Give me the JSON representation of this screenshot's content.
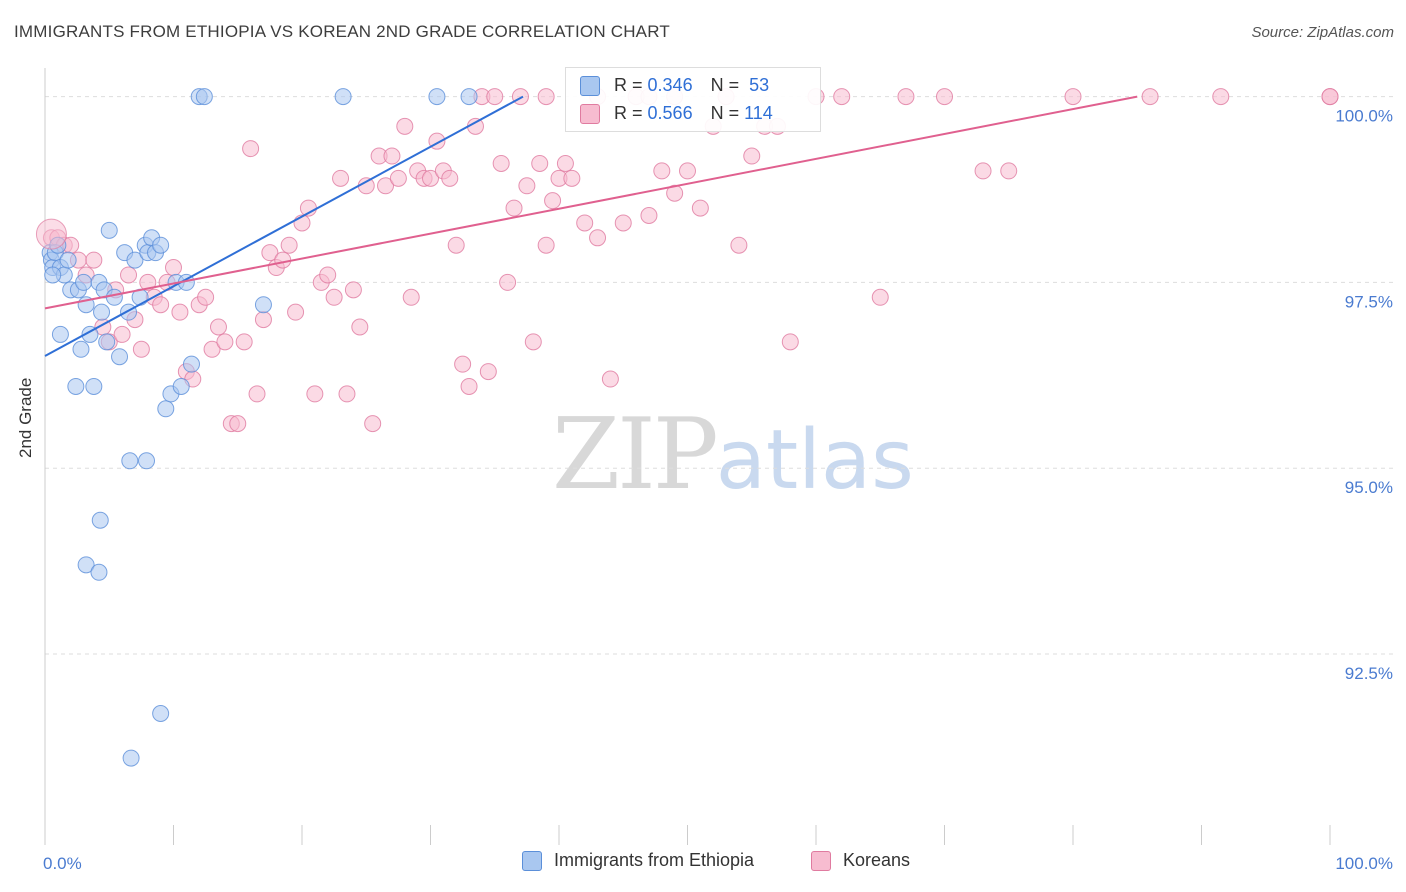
{
  "header": {
    "title": "IMMIGRANTS FROM ETHIOPIA VS KOREAN 2ND GRADE CORRELATION CHART",
    "source": "Source: ZipAtlas.com"
  },
  "watermark": {
    "zip": "ZIP",
    "atlas": "atlas"
  },
  "legend": {
    "rows": [
      {
        "r_label": "R =",
        "r_value": "0.346",
        "n_label": "N =",
        "n_value": "53"
      },
      {
        "r_label": "R =",
        "r_value": "0.566",
        "n_label": "N =",
        "n_value": "114"
      }
    ]
  },
  "bottom_legend": {
    "series1": "Immigrants from Ethiopia",
    "series2": "Koreans"
  },
  "chart_data": {
    "type": "scatter",
    "title": "IMMIGRANTS FROM ETHIOPIA VS KOREAN 2ND GRADE CORRELATION CHART",
    "xlabel": "",
    "ylabel": "2nd Grade",
    "xlim": [
      0,
      100
    ],
    "ylim": [
      90.2,
      100.25
    ],
    "x_tick_labels": [
      {
        "value": 0,
        "label": "0.0%"
      },
      {
        "value": 100,
        "label": "100.0%"
      }
    ],
    "y_ticks": [
      {
        "value": 100.0,
        "label": "100.0%"
      },
      {
        "value": 97.5,
        "label": "97.5%"
      },
      {
        "value": 95.0,
        "label": "95.0%"
      },
      {
        "value": 92.5,
        "label": "92.5%"
      }
    ],
    "colors": {
      "series1_fill": "#a9c7f0",
      "series1_stroke": "#5b8fd9",
      "series1_line": "#2f6fd6",
      "series2_fill": "#f7bcd0",
      "series2_stroke": "#e07ba0",
      "series2_line": "#e0608f",
      "grid": "#dddddd",
      "tick_label": "#4a7bd0"
    },
    "series": [
      {
        "name": "Immigrants from Ethiopia",
        "r": 0.346,
        "n": 53,
        "trend": {
          "x": [
            0,
            37.2
          ],
          "y": [
            96.51,
            100.0
          ]
        },
        "points": [
          [
            0.4,
            97.9
          ],
          [
            0.5,
            97.8
          ],
          [
            0.6,
            97.7
          ],
          [
            0.8,
            97.9
          ],
          [
            1.0,
            98.0
          ],
          [
            1.2,
            97.7
          ],
          [
            1.5,
            97.6
          ],
          [
            1.8,
            97.8
          ],
          [
            2.0,
            97.4
          ],
          [
            2.4,
            96.1
          ],
          [
            2.6,
            97.4
          ],
          [
            2.8,
            96.6
          ],
          [
            3.0,
            97.5
          ],
          [
            3.2,
            97.2
          ],
          [
            3.5,
            96.8
          ],
          [
            3.8,
            96.1
          ],
          [
            4.2,
            97.5
          ],
          [
            4.4,
            97.1
          ],
          [
            4.6,
            97.4
          ],
          [
            4.8,
            96.7
          ],
          [
            5.0,
            98.2
          ],
          [
            5.4,
            97.3
          ],
          [
            5.8,
            96.5
          ],
          [
            6.2,
            97.9
          ],
          [
            6.5,
            97.1
          ],
          [
            7.0,
            97.8
          ],
          [
            7.4,
            97.3
          ],
          [
            7.8,
            98.0
          ],
          [
            8.0,
            97.9
          ],
          [
            8.3,
            98.1
          ],
          [
            8.6,
            97.9
          ],
          [
            9.0,
            98.0
          ],
          [
            9.4,
            95.8
          ],
          [
            9.8,
            96.0
          ],
          [
            10.2,
            97.5
          ],
          [
            10.6,
            96.1
          ],
          [
            11.0,
            97.5
          ],
          [
            11.4,
            96.4
          ],
          [
            3.2,
            93.7
          ],
          [
            4.2,
            93.6
          ],
          [
            4.3,
            94.3
          ],
          [
            6.6,
            95.1
          ],
          [
            6.7,
            91.1
          ],
          [
            7.9,
            95.1
          ],
          [
            9.0,
            91.7
          ],
          [
            12.0,
            100.0
          ],
          [
            12.4,
            100.0
          ],
          [
            17.0,
            97.2
          ],
          [
            23.2,
            100.0
          ],
          [
            30.5,
            100.0
          ],
          [
            33.0,
            100.0
          ],
          [
            0.6,
            97.6
          ],
          [
            1.2,
            96.8
          ]
        ]
      },
      {
        "name": "Koreans",
        "r": 0.566,
        "n": 114,
        "trend": {
          "x": [
            0,
            85.0
          ],
          "y": [
            97.15,
            100.0
          ]
        },
        "points": [
          [
            0.5,
            98.1
          ],
          [
            1.0,
            98.1
          ],
          [
            1.5,
            98.0
          ],
          [
            2.0,
            98.0
          ],
          [
            2.6,
            97.8
          ],
          [
            3.2,
            97.6
          ],
          [
            3.8,
            97.8
          ],
          [
            4.5,
            96.9
          ],
          [
            5.0,
            96.7
          ],
          [
            5.5,
            97.4
          ],
          [
            6.0,
            96.8
          ],
          [
            6.5,
            97.6
          ],
          [
            7.0,
            97.0
          ],
          [
            7.5,
            96.6
          ],
          [
            8.0,
            97.5
          ],
          [
            8.5,
            97.3
          ],
          [
            9.0,
            97.2
          ],
          [
            9.5,
            97.5
          ],
          [
            10.0,
            97.7
          ],
          [
            10.5,
            97.1
          ],
          [
            11.0,
            96.3
          ],
          [
            11.5,
            96.2
          ],
          [
            12.0,
            97.2
          ],
          [
            12.5,
            97.3
          ],
          [
            13.0,
            96.6
          ],
          [
            13.5,
            96.9
          ],
          [
            14.0,
            96.7
          ],
          [
            14.5,
            95.6
          ],
          [
            15.0,
            95.6
          ],
          [
            15.5,
            96.7
          ],
          [
            16.0,
            99.3
          ],
          [
            16.5,
            96.0
          ],
          [
            17.0,
            97.0
          ],
          [
            17.5,
            97.9
          ],
          [
            18.0,
            97.7
          ],
          [
            18.5,
            97.8
          ],
          [
            19.0,
            98.0
          ],
          [
            19.5,
            97.1
          ],
          [
            20.0,
            98.3
          ],
          [
            20.5,
            98.5
          ],
          [
            21.0,
            96.0
          ],
          [
            21.5,
            97.5
          ],
          [
            22.0,
            97.6
          ],
          [
            22.5,
            97.3
          ],
          [
            23.0,
            98.9
          ],
          [
            23.5,
            96.0
          ],
          [
            24.0,
            97.4
          ],
          [
            24.5,
            96.9
          ],
          [
            25.0,
            98.8
          ],
          [
            25.5,
            95.6
          ],
          [
            26.0,
            99.2
          ],
          [
            26.5,
            98.8
          ],
          [
            27.0,
            99.2
          ],
          [
            27.5,
            98.9
          ],
          [
            28.0,
            99.6
          ],
          [
            28.5,
            97.3
          ],
          [
            29.0,
            99.0
          ],
          [
            29.5,
            98.9
          ],
          [
            30.0,
            98.9
          ],
          [
            30.5,
            99.4
          ],
          [
            31.0,
            99.0
          ],
          [
            31.5,
            98.9
          ],
          [
            32.0,
            98.0
          ],
          [
            32.5,
            96.4
          ],
          [
            33.0,
            96.1
          ],
          [
            33.5,
            99.6
          ],
          [
            34.0,
            100.0
          ],
          [
            34.5,
            96.3
          ],
          [
            35.0,
            100.0
          ],
          [
            35.5,
            99.1
          ],
          [
            36.0,
            97.5
          ],
          [
            36.5,
            98.5
          ],
          [
            37.0,
            100.0
          ],
          [
            37.5,
            98.8
          ],
          [
            38.0,
            96.7
          ],
          [
            38.5,
            99.1
          ],
          [
            39.0,
            98.0
          ],
          [
            39.5,
            98.6
          ],
          [
            40.0,
            98.9
          ],
          [
            40.5,
            99.1
          ],
          [
            41.0,
            98.9
          ],
          [
            42.0,
            98.3
          ],
          [
            43.0,
            98.1
          ],
          [
            44.0,
            96.2
          ],
          [
            45.0,
            98.3
          ],
          [
            46.0,
            100.0
          ],
          [
            47.0,
            98.4
          ],
          [
            48.0,
            99.0
          ],
          [
            49.0,
            98.7
          ],
          [
            50.0,
            99.0
          ],
          [
            51.0,
            98.5
          ],
          [
            52.0,
            99.6
          ],
          [
            53.0,
            100.0
          ],
          [
            54.0,
            98.0
          ],
          [
            55.0,
            99.2
          ],
          [
            56.0,
            99.6
          ],
          [
            57.0,
            99.6
          ],
          [
            58.0,
            96.7
          ],
          [
            60.0,
            100.0
          ],
          [
            62.0,
            100.0
          ],
          [
            65.0,
            97.3
          ],
          [
            67.0,
            100.0
          ],
          [
            70.0,
            100.0
          ],
          [
            73.0,
            99.0
          ],
          [
            75.0,
            99.0
          ],
          [
            80.0,
            100.0
          ],
          [
            86.0,
            100.0
          ],
          [
            91.5,
            100.0
          ],
          [
            100.0,
            100.0
          ],
          [
            100.0,
            100.0
          ],
          [
            39.0,
            100.0
          ],
          [
            43.0,
            100.0
          ],
          [
            47.0,
            100.0
          ],
          [
            49.0,
            100.0
          ]
        ]
      }
    ]
  }
}
